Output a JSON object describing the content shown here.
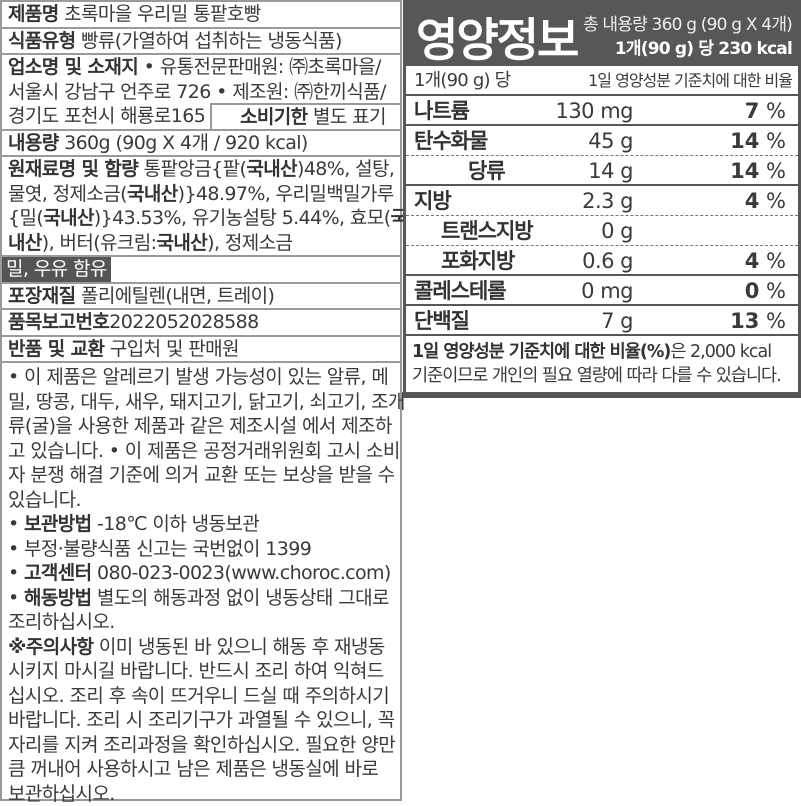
{
  "left": {
    "rows": [
      {
        "lines": [
          [
            {
              "t": "제품명",
              "b": 1
            },
            {
              "t": " 초록마을 우리밀 통팥호빵"
            }
          ]
        ]
      },
      {
        "lines": [
          [
            {
              "t": "식품유형",
              "b": 1
            },
            {
              "t": " 빵류(가열하여 섭취하는 냉동식품)"
            }
          ]
        ]
      },
      {
        "lines": [
          [
            {
              "t": "업소명 및 소재지",
              "b": 1
            },
            {
              "t": "  • 유통전문판매원: ㈜초록마을/"
            }
          ],
          [
            {
              "t": "서울시 강남구 언주로 726  • 제조원: ㈜한끼식품/"
            }
          ],
          [
            {
              "t": "경기도 포천시 해룡로165"
            }
          ]
        ],
        "box": [
          {
            "t": "소비기한",
            "b": 1
          },
          {
            "t": " 별도 표기"
          }
        ]
      },
      {
        "lines": [
          [
            {
              "t": "내용량",
              "b": 1
            },
            {
              "t": " 360g (90g X 4개 / 920 kcal)"
            }
          ]
        ]
      },
      {
        "lines": [
          [
            {
              "t": "원재료명 및 함량",
              "b": 1
            },
            {
              "t": " 통팥앙금{팥("
            },
            {
              "t": "국내산",
              "b": 1
            },
            {
              "t": ")48%, 설탕,"
            }
          ],
          [
            {
              "t": "물엿, 정제소금("
            },
            {
              "t": "국내산",
              "b": 1
            },
            {
              "t": ")}48.97%, 우리밀백밀가루"
            }
          ],
          [
            {
              "t": "{밀("
            },
            {
              "t": "국내산",
              "b": 1
            },
            {
              "t": ")}43.53%, 유기농설탕 5.44%, 효모("
            },
            {
              "t": "국",
              "b": 1
            }
          ],
          [
            {
              "t": "내산",
              "b": 1
            },
            {
              "t": "), 버터(유크림:"
            },
            {
              "t": "국내산",
              "b": 1
            },
            {
              "t": "), 정제소금"
            }
          ]
        ]
      },
      {
        "lines": [
          [
            {
              "t": "밀, 우유 함유",
              "a": 1
            }
          ]
        ]
      },
      {
        "lines": [
          [
            {
              "t": "포장재질",
              "b": 1
            },
            {
              "t": " 폴리에틸렌(내면, 트레이)"
            }
          ]
        ]
      },
      {
        "lines": [
          [
            {
              "t": "품목보고번호",
              "b": 1
            },
            {
              "t": "2022052028588"
            }
          ]
        ]
      },
      {
        "lines": [
          [
            {
              "t": "반품 및 교환",
              "b": 1
            },
            {
              "t": " 구입처 및 판매원"
            }
          ]
        ]
      },
      {
        "lines": [
          [
            {
              "t": " • 이 제품은 알레르기 발생 가능성이 있는 알류, 메"
            }
          ],
          [
            {
              "t": "밀, 땅콩, 대두, 새우, 돼지고기, 닭고기, 쇠고기, 조개"
            }
          ],
          [
            {
              "t": "류(굴)을 사용한 제품과 같은 제조시설 에서 제조하"
            }
          ],
          [
            {
              "t": "고 있습니다. • 이 제품은 공정거래위원회 고시 소비"
            }
          ],
          [
            {
              "t": "자 분쟁 해결 기준에 의거 교환 또는 보상을 받을 수"
            }
          ],
          [
            {
              "t": "있습니다."
            }
          ],
          [
            {
              "t": " • "
            },
            {
              "t": "보관방법",
              "b": 1
            },
            {
              "t": " -18℃ 이하 냉동보관"
            }
          ],
          [
            {
              "t": " • 부정·불량식품 신고는 국번없이 1399"
            }
          ],
          [
            {
              "t": " • "
            },
            {
              "t": "고객센터",
              "b": 1
            },
            {
              "t": " 080-023-0023(www.choroc.com)"
            }
          ],
          [
            {
              "t": " • "
            },
            {
              "t": "해동방법",
              "b": 1
            },
            {
              "t": " 별도의 해동과정 없이 냉동상태 그대로"
            }
          ],
          [
            {
              "t": "조리하십시오."
            }
          ],
          [
            {
              "t": "※주의사항",
              "b": 1
            },
            {
              "t": " 이미 냉동된 바 있으니 해동 후 재냉동"
            }
          ],
          [
            {
              "t": "시키지 마시길 바랍니다. 반드시 조리 하여 익혀드"
            }
          ],
          [
            {
              "t": "십시오. 조리 후 속이 뜨거우니 드실 때 주의하시기"
            }
          ],
          [
            {
              "t": "바랍니다. 조리 시 조리기구가 과열될 수 있으니, 꼭"
            }
          ],
          [
            {
              "t": "자리를 지켜 조리과정을 확인하십시오. 필요한 양만"
            }
          ],
          [
            {
              "t": "큼 꺼내어 사용하시고 남은 제품은 냉동실에 바로"
            }
          ],
          [
            {
              "t": "보관하십시오."
            }
          ]
        ]
      }
    ]
  },
  "nutrition": {
    "title": "영양정보",
    "total": "총 내용량 360 g (90 g X 4개)",
    "per_serving": "1개(90 g) 당 230 kcal",
    "header_left": "1개(90 g) 당",
    "header_right": "1일 영양성분 기준치에 대한 비율",
    "rows": [
      {
        "name": "나트륨",
        "amount": "130 mg",
        "pct": "7",
        "unit": " %",
        "indent": 0
      },
      {
        "name": "탄수화물",
        "amount": "45 g",
        "pct": "14",
        "unit": " %",
        "indent": 0,
        "dot": 1
      },
      {
        "name": "당류",
        "amount": "14 g",
        "pct": "14",
        "unit": " %",
        "indent": 2
      },
      {
        "name": "지방",
        "amount": "2.3 g",
        "pct": "4",
        "unit": " %",
        "indent": 0,
        "dot": 1
      },
      {
        "name": "트랜스지방",
        "amount": "0 g",
        "pct": "",
        "unit": "",
        "indent": 1,
        "dot": 1
      },
      {
        "name": "포화지방",
        "amount": "0.6 g",
        "pct": "4",
        "unit": " %",
        "indent": 1
      },
      {
        "name": "콜레스테롤",
        "amount": "0 mg",
        "pct": "0",
        "unit": " %",
        "indent": 0
      },
      {
        "name": "단백질",
        "amount": "7 g",
        "pct": "13",
        "unit": " %",
        "indent": 0
      }
    ],
    "footnote_bold": "1일 영양성분 기준치에 대한 비율(%)",
    "footnote_rest": "은 2,000 kcal",
    "footnote_line2": "기준이므로 개인의 필요 열량에 따라 다를 수 있습니다."
  },
  "colors": {
    "header_bg": "#575757",
    "border": "#9a9a9a",
    "text": "#3a3a3a"
  }
}
